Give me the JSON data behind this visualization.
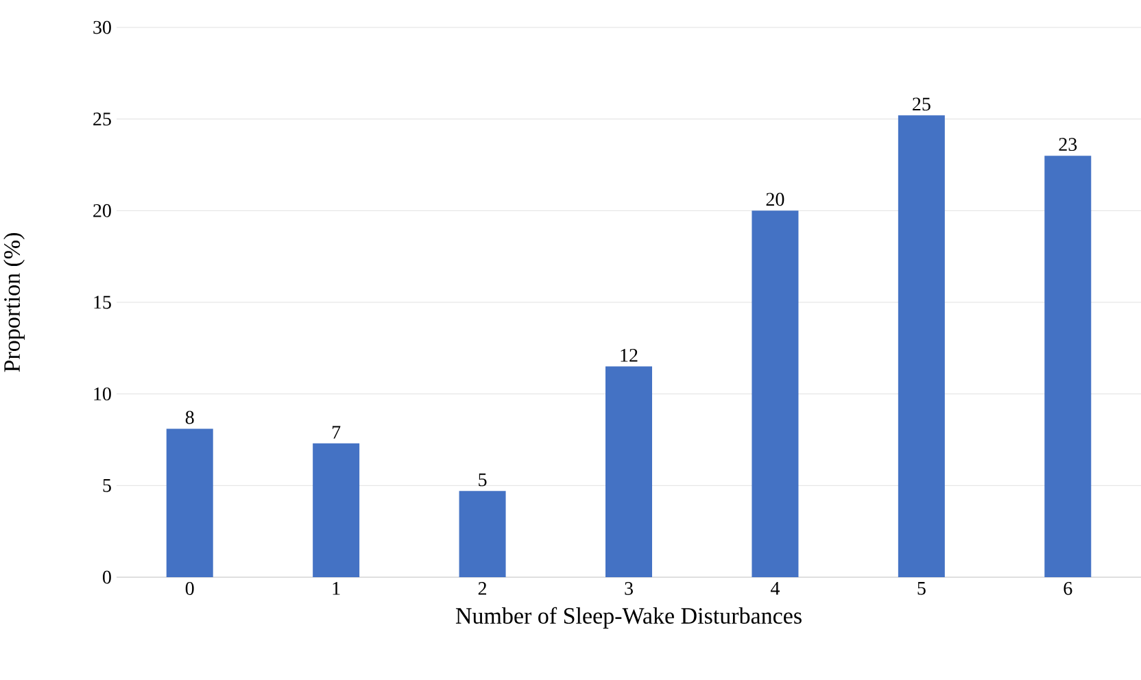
{
  "chart_data": {
    "type": "bar",
    "xlabel": "Number of Sleep-Wake Disturbances",
    "ylabel": "Proportion (%)",
    "categories": [
      "0",
      "1",
      "2",
      "3",
      "4",
      "5",
      "6"
    ],
    "values": [
      8.1,
      7.3,
      4.7,
      11.5,
      20.0,
      25.2,
      23.0
    ],
    "value_labels": [
      "8",
      "7",
      "5",
      "12",
      "20",
      "25",
      "23"
    ],
    "color": "#4472c4",
    "ylim": [
      0,
      30
    ],
    "yticks": [
      0,
      5,
      10,
      15,
      20,
      25,
      30
    ],
    "grid": "y"
  }
}
